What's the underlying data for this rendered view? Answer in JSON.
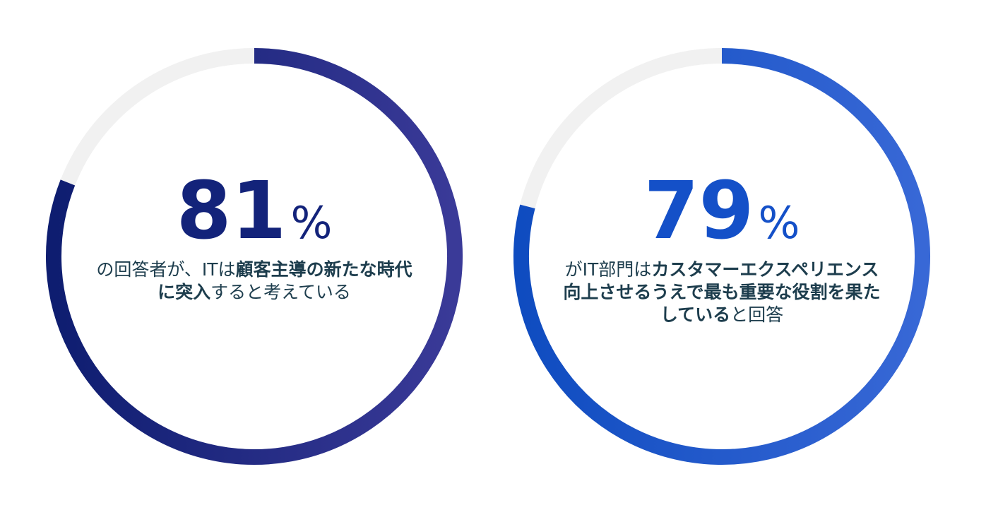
{
  "chart_data": [
    {
      "type": "donut",
      "value": 81,
      "unit": "%",
      "ylim": [
        0,
        100
      ],
      "colors": [
        "#0e1d70",
        "#3a3a98"
      ],
      "track_color": "#f1f1f1",
      "number_color": "#13237a",
      "caption": [
        [
          {
            "text": "の回答者が、ITは",
            "bold": false
          },
          {
            "text": "顧客主導の新たな時代",
            "bold": true
          }
        ],
        [
          {
            "text": "に突入",
            "bold": true
          },
          {
            "text": "すると考えている",
            "bold": false
          }
        ]
      ]
    },
    {
      "type": "donut",
      "value": 79,
      "unit": "%",
      "ylim": [
        0,
        100
      ],
      "colors": [
        "#0f4cc0",
        "#3868d6"
      ],
      "track_color": "#f1f1f1",
      "number_color": "#1450c8",
      "caption": [
        [
          {
            "text": "がIT部門は",
            "bold": false
          },
          {
            "text": "カスタマーエクスペリエンス",
            "bold": true
          }
        ],
        [
          {
            "text": "向上させるうえで最も重要な役割を果た",
            "bold": true
          }
        ],
        [
          {
            "text": "している",
            "bold": true
          },
          {
            "text": "と回答",
            "bold": false
          }
        ]
      ]
    }
  ]
}
